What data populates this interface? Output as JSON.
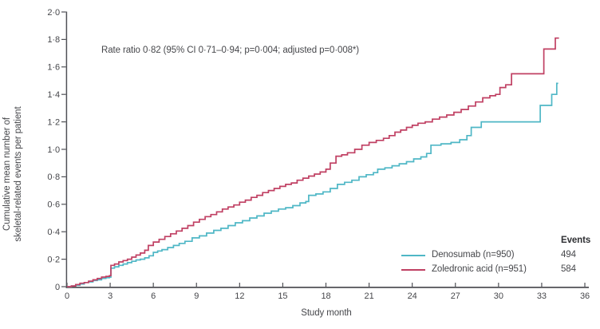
{
  "figure": {
    "annotation": "Rate ratio 0·82 (95% CI 0·71–0·94; p=0·004; adjusted p=0·008*)",
    "legend": {
      "events_header": "Events",
      "items": [
        {
          "label": "Denosumab (n=950)",
          "events": "494",
          "color": "#4fb7c6"
        },
        {
          "label": "Zoledronic acid (n=951)",
          "events": "584",
          "color": "#c04063"
        }
      ]
    }
  },
  "chart_data": {
    "type": "line",
    "step": true,
    "title": "",
    "xlabel": "Study month",
    "ylabel_lines": [
      "Cumulative mean number of",
      "skeletal-related events per patient"
    ],
    "xlim": [
      0,
      36
    ],
    "ylim": [
      0,
      2.0
    ],
    "grid": false,
    "legend_position": "lower right",
    "x_ticks": {
      "values": [
        0,
        3,
        6,
        9,
        12,
        15,
        18,
        21,
        24,
        27,
        30,
        33,
        36
      ],
      "labels": [
        "0",
        "3",
        "6",
        "9",
        "12",
        "15",
        "18",
        "21",
        "24",
        "27",
        "30",
        "33",
        "36"
      ]
    },
    "y_ticks": {
      "values": [
        0,
        0.2,
        0.4,
        0.6,
        0.8,
        1.0,
        1.2,
        1.4,
        1.6,
        1.8,
        2.0
      ],
      "labels": [
        "0",
        "0·2",
        "0·4",
        "0·6",
        "0·8",
        "1·0",
        "1·2",
        "1·4",
        "1·6",
        "1·8",
        "2·0"
      ]
    },
    "series": [
      {
        "name": "Denosumab (n=950)",
        "events": 494,
        "color": "#4fb7c6",
        "points": [
          [
            0,
            0
          ],
          [
            0.3,
            0.005
          ],
          [
            0.6,
            0.01
          ],
          [
            0.9,
            0.02
          ],
          [
            1.2,
            0.03
          ],
          [
            1.5,
            0.035
          ],
          [
            1.8,
            0.045
          ],
          [
            2.1,
            0.05
          ],
          [
            2.4,
            0.06
          ],
          [
            2.7,
            0.065
          ],
          [
            2.95,
            0.07
          ],
          [
            3.05,
            0.135
          ],
          [
            3.3,
            0.145
          ],
          [
            3.6,
            0.155
          ],
          [
            3.9,
            0.165
          ],
          [
            4.2,
            0.175
          ],
          [
            4.5,
            0.185
          ],
          [
            4.8,
            0.195
          ],
          [
            5.1,
            0.2
          ],
          [
            5.4,
            0.21
          ],
          [
            5.7,
            0.225
          ],
          [
            6,
            0.25
          ],
          [
            6.3,
            0.26
          ],
          [
            6.6,
            0.27
          ],
          [
            7,
            0.285
          ],
          [
            7.4,
            0.3
          ],
          [
            7.8,
            0.315
          ],
          [
            8.2,
            0.33
          ],
          [
            8.7,
            0.355
          ],
          [
            9.2,
            0.37
          ],
          [
            9.7,
            0.39
          ],
          [
            10.2,
            0.41
          ],
          [
            10.7,
            0.425
          ],
          [
            11.2,
            0.445
          ],
          [
            11.7,
            0.465
          ],
          [
            12.2,
            0.48
          ],
          [
            12.7,
            0.5
          ],
          [
            13.2,
            0.515
          ],
          [
            13.7,
            0.535
          ],
          [
            14.2,
            0.55
          ],
          [
            14.7,
            0.565
          ],
          [
            15.2,
            0.575
          ],
          [
            15.7,
            0.59
          ],
          [
            16.2,
            0.61
          ],
          [
            16.6,
            0.62
          ],
          [
            16.8,
            0.665
          ],
          [
            17.3,
            0.675
          ],
          [
            17.8,
            0.69
          ],
          [
            18.3,
            0.715
          ],
          [
            18.8,
            0.745
          ],
          [
            19.3,
            0.76
          ],
          [
            19.8,
            0.775
          ],
          [
            20.3,
            0.8
          ],
          [
            20.8,
            0.815
          ],
          [
            21.3,
            0.83
          ],
          [
            21.6,
            0.855
          ],
          [
            22.1,
            0.865
          ],
          [
            22.6,
            0.88
          ],
          [
            23.1,
            0.895
          ],
          [
            23.6,
            0.91
          ],
          [
            24.1,
            0.93
          ],
          [
            24.6,
            0.945
          ],
          [
            25,
            0.97
          ],
          [
            25.3,
            1.03
          ],
          [
            26,
            1.04
          ],
          [
            26.7,
            1.05
          ],
          [
            27.3,
            1.07
          ],
          [
            27.8,
            1.1
          ],
          [
            28.1,
            1.16
          ],
          [
            28.8,
            1.2
          ],
          [
            32.8,
            1.2
          ],
          [
            32.9,
            1.32
          ],
          [
            33.6,
            1.32
          ],
          [
            33.7,
            1.4
          ],
          [
            33.95,
            1.4
          ],
          [
            34.05,
            1.48
          ],
          [
            34.15,
            1.48
          ]
        ]
      },
      {
        "name": "Zoledronic acid (n=951)",
        "events": 584,
        "color": "#c04063",
        "points": [
          [
            0,
            0
          ],
          [
            0.3,
            0.005
          ],
          [
            0.6,
            0.015
          ],
          [
            0.9,
            0.025
          ],
          [
            1.2,
            0.03
          ],
          [
            1.5,
            0.04
          ],
          [
            1.8,
            0.05
          ],
          [
            2.1,
            0.06
          ],
          [
            2.4,
            0.07
          ],
          [
            2.7,
            0.075
          ],
          [
            2.95,
            0.08
          ],
          [
            3.05,
            0.155
          ],
          [
            3.3,
            0.165
          ],
          [
            3.6,
            0.18
          ],
          [
            3.9,
            0.19
          ],
          [
            4.2,
            0.2
          ],
          [
            4.5,
            0.215
          ],
          [
            4.8,
            0.23
          ],
          [
            5.1,
            0.245
          ],
          [
            5.4,
            0.265
          ],
          [
            5.65,
            0.3
          ],
          [
            6,
            0.325
          ],
          [
            6.4,
            0.345
          ],
          [
            6.8,
            0.365
          ],
          [
            7.2,
            0.385
          ],
          [
            7.6,
            0.405
          ],
          [
            8,
            0.425
          ],
          [
            8.4,
            0.445
          ],
          [
            8.8,
            0.47
          ],
          [
            9.2,
            0.49
          ],
          [
            9.6,
            0.51
          ],
          [
            10,
            0.525
          ],
          [
            10.4,
            0.545
          ],
          [
            10.8,
            0.565
          ],
          [
            11.2,
            0.58
          ],
          [
            11.6,
            0.595
          ],
          [
            12,
            0.615
          ],
          [
            12.4,
            0.63
          ],
          [
            12.8,
            0.65
          ],
          [
            13.2,
            0.665
          ],
          [
            13.6,
            0.685
          ],
          [
            14,
            0.7
          ],
          [
            14.4,
            0.715
          ],
          [
            14.8,
            0.73
          ],
          [
            15.2,
            0.745
          ],
          [
            15.6,
            0.755
          ],
          [
            16,
            0.775
          ],
          [
            16.4,
            0.79
          ],
          [
            16.8,
            0.805
          ],
          [
            17.2,
            0.82
          ],
          [
            17.6,
            0.835
          ],
          [
            18,
            0.855
          ],
          [
            18.3,
            0.9
          ],
          [
            18.7,
            0.95
          ],
          [
            19.1,
            0.96
          ],
          [
            19.5,
            0.975
          ],
          [
            20,
            1.0
          ],
          [
            20.5,
            1.03
          ],
          [
            21,
            1.05
          ],
          [
            21.5,
            1.065
          ],
          [
            22,
            1.08
          ],
          [
            22.4,
            1.1
          ],
          [
            22.8,
            1.125
          ],
          [
            23.2,
            1.14
          ],
          [
            23.6,
            1.16
          ],
          [
            24,
            1.175
          ],
          [
            24.4,
            1.19
          ],
          [
            24.9,
            1.2
          ],
          [
            25.4,
            1.22
          ],
          [
            25.9,
            1.235
          ],
          [
            26.4,
            1.25
          ],
          [
            26.9,
            1.27
          ],
          [
            27.4,
            1.29
          ],
          [
            27.9,
            1.315
          ],
          [
            28.4,
            1.345
          ],
          [
            28.9,
            1.375
          ],
          [
            29.4,
            1.39
          ],
          [
            29.8,
            1.4
          ],
          [
            30.1,
            1.45
          ],
          [
            30.5,
            1.47
          ],
          [
            30.9,
            1.55
          ],
          [
            33.1,
            1.55
          ],
          [
            33.15,
            1.73
          ],
          [
            33.9,
            1.73
          ],
          [
            33.95,
            1.81
          ],
          [
            34.2,
            1.81
          ]
        ]
      }
    ]
  }
}
